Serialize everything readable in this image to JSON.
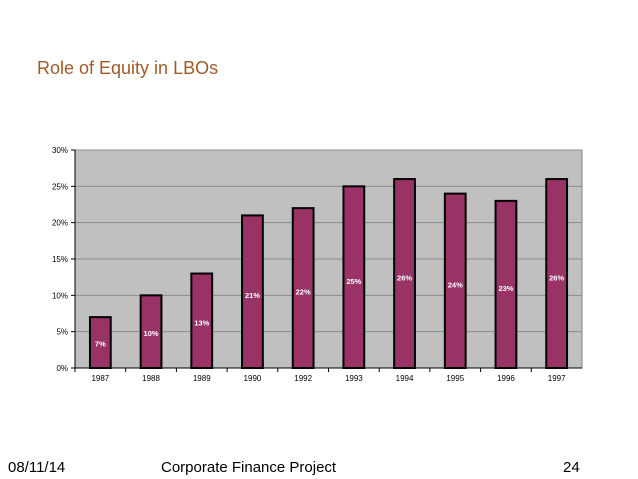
{
  "slide": {
    "title": "Role of Equity in LBOs"
  },
  "footer": {
    "date": "08/11/14",
    "project": "Corporate Finance Project",
    "page_number": "24"
  },
  "colors": {
    "title": "#a35a2a",
    "bar_fill": "#993366",
    "bar_stroke": "#000000",
    "plot_background": "#c0c0c0",
    "gridline": "#8c8c8c",
    "data_label": "#ffffff"
  },
  "chart_data": {
    "type": "bar",
    "categories": [
      "1987",
      "1988",
      "1989",
      "1990",
      "1992",
      "1993",
      "1994",
      "1995",
      "1996",
      "1997"
    ],
    "values": [
      7,
      10,
      13,
      21,
      22,
      25,
      26,
      24,
      23,
      26
    ],
    "data_labels": [
      "7%",
      "10%",
      "13%",
      "21%",
      "22%",
      "25%",
      "26%",
      "24%",
      "23%",
      "26%"
    ],
    "y_ticks": [
      0,
      5,
      10,
      15,
      20,
      25,
      30
    ],
    "y_tick_labels": [
      "0%",
      "5%",
      "10%",
      "15%",
      "20%",
      "25%",
      "30%"
    ],
    "ylim": [
      0,
      30
    ],
    "grid": true,
    "legend": false,
    "title": "",
    "xlabel": "",
    "ylabel": ""
  }
}
